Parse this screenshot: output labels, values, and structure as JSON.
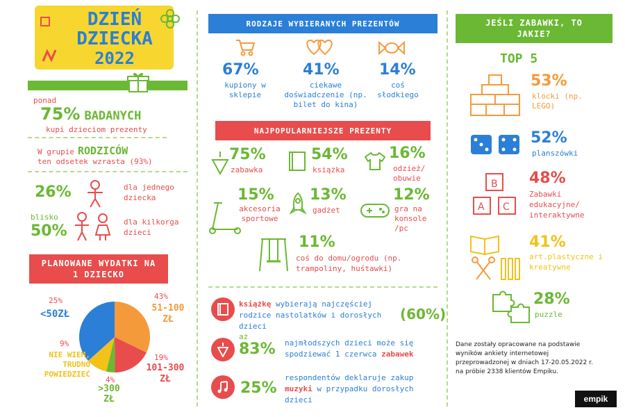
{
  "title": {
    "line1": "DZIEŃ",
    "line2": "DZIECKA",
    "line3": "2022"
  },
  "col1": {
    "stat1": {
      "prefix": "ponad",
      "value": "75%",
      "label": "BADANYCH",
      "desc": "kupi dzieciom prezenty"
    },
    "stat2": {
      "prefix": "W grupie",
      "label": "RODZICÓW",
      "desc": "ten odsetek wzrasta (93%)"
    },
    "stat3": {
      "value": "26%",
      "desc": "dla jednego dziecka"
    },
    "stat4": {
      "prefix": "blisko",
      "value": "50%",
      "desc": "dla kilkorga dzieci"
    },
    "banner": "PLANOWANE WYDATKI NA 1 DZIECKO",
    "pie": {
      "s1": {
        "pct": "25%",
        "label": "<50ZŁ"
      },
      "s2": {
        "pct": "43%",
        "label": "51-100 ZŁ"
      },
      "s3": {
        "pct": "19%",
        "label": "101-300 ZŁ"
      },
      "s4": {
        "pct": "4%",
        "label": ">300 ZŁ"
      },
      "s5": {
        "pct": "9%",
        "label": "NIE WIEM, TRUDNO POWIEDZIEĆ"
      }
    }
  },
  "col2": {
    "banner1": "RODZAJE WYBIERANYCH PREZENTÓW",
    "types": [
      {
        "value": "67%",
        "desc": "kupiony w sklepie"
      },
      {
        "value": "41%",
        "desc": "ciekawe doświadczenie (np. bilet do kina)"
      },
      {
        "value": "14%",
        "desc": "coś słodkiego"
      }
    ],
    "banner2": "NAJPOPULARNIEJSZE PREZENTY",
    "gifts": [
      {
        "value": "75%",
        "desc": "zabawka"
      },
      {
        "value": "54%",
        "desc": "książka"
      },
      {
        "value": "16%",
        "desc": "odzież/ obuwie"
      },
      {
        "value": "15%",
        "desc": "akcesoria sportowe"
      },
      {
        "value": "13%",
        "desc": "gadżet"
      },
      {
        "value": "12%",
        "desc": "gra na konsole /pc"
      },
      {
        "value": "11%",
        "desc": "coś do domu/ogrodu (np. trampoliny, huśtawki)"
      }
    ],
    "facts": [
      {
        "highlight": "książkę",
        "text": "wybierają najczęściej rodzice nastolatków i dorosłych dzieci",
        "value": "(60%)"
      },
      {
        "prefix": "aż",
        "value": "83%",
        "text": "najmłodszych dzieci może się spodziewać 1 czerwca",
        "highlight": "zabawek"
      },
      {
        "value": "25%",
        "text1": "respondentów deklaruje zakup",
        "highlight": "muzyki",
        "text2": "w przypadku dorosłych dzieci"
      }
    ]
  },
  "col3": {
    "banner": "JEŚLI ZABAWKI, TO JAKIE?",
    "top": "TOP 5",
    "items": [
      {
        "value": "53%",
        "desc": "klocki (np. LEGO)"
      },
      {
        "value": "52%",
        "desc": "planszówki"
      },
      {
        "value": "48%",
        "desc": "Zabawki edukacyjne/ interaktywne"
      },
      {
        "value": "41%",
        "desc": "art.plastyczne i kreatywne"
      },
      {
        "value": "28%",
        "desc": "puzzle"
      }
    ],
    "note": "Dane zostały opracowane na podstawie wyników ankiety internetowej przeprowadzonej w dniach 17-20.05.2022 r. na próbie 2338 klientów Empiku.",
    "logo": "empik"
  },
  "colors": {
    "green": "#6ab833",
    "red": "#e84c4c",
    "blue": "#2b7fd6",
    "orange": "#f59a3b",
    "yellow": "#f2c11a"
  }
}
